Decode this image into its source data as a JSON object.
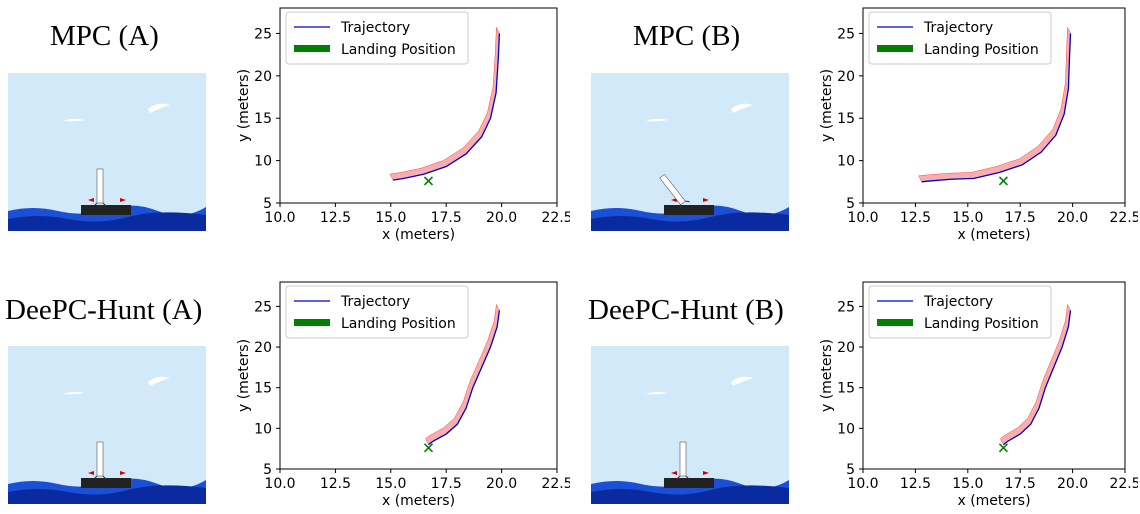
{
  "panels": [
    {
      "title": "MPC (A)"
    },
    {
      "title": "MPC (B)"
    },
    {
      "title": "DeePC-Hunt (A)"
    },
    {
      "title": "DeePC-Hunt (B)"
    }
  ],
  "colors": {
    "sky": "#d2e9fa",
    "trajectory": "#0000cc",
    "landing": "#008000",
    "rocket_shadow": "#ff0000",
    "platform": "#222222"
  },
  "chart_data": [
    {
      "type": "line",
      "panel": "MPC (A)",
      "xlabel": "x (meters)",
      "ylabel": "y (meters)",
      "xlim": [
        10.0,
        22.5
      ],
      "ylim": [
        5,
        28
      ],
      "xticks": [
        "10.0",
        "12.5",
        "15.0",
        "17.5",
        "20.0",
        "22.5"
      ],
      "yticks": [
        "5",
        "10",
        "15",
        "20",
        "25"
      ],
      "legend": {
        "position": "top-left",
        "entries": [
          "Trajectory",
          "Landing Position"
        ]
      },
      "landing_position": {
        "x": 16.7,
        "y": 7.6
      },
      "series": [
        {
          "name": "Trajectory",
          "x": [
            19.9,
            19.85,
            19.75,
            19.5,
            19.1,
            18.4,
            17.5,
            16.5,
            15.6,
            15.1
          ],
          "y": [
            25.0,
            22.0,
            18.0,
            15.0,
            12.8,
            10.8,
            9.3,
            8.4,
            7.9,
            7.7
          ]
        }
      ]
    },
    {
      "type": "line",
      "panel": "MPC (B)",
      "xlabel": "x (meters)",
      "ylabel": "y (meters)",
      "xlim": [
        10.0,
        22.5
      ],
      "ylim": [
        5,
        28
      ],
      "xticks": [
        "10.0",
        "12.5",
        "15.0",
        "17.5",
        "20.0",
        "22.5"
      ],
      "yticks": [
        "5",
        "10",
        "15",
        "20",
        "25"
      ],
      "legend": {
        "position": "top-left",
        "entries": [
          "Trajectory",
          "Landing Position"
        ]
      },
      "landing_position": {
        "x": 16.7,
        "y": 7.6
      },
      "series": [
        {
          "name": "Trajectory",
          "x": [
            19.9,
            19.85,
            19.8,
            19.6,
            19.2,
            18.5,
            17.6,
            16.5,
            15.3,
            14.2,
            13.2,
            12.8
          ],
          "y": [
            25.0,
            22.0,
            18.5,
            15.5,
            13.0,
            11.0,
            9.5,
            8.6,
            7.9,
            7.8,
            7.6,
            7.5
          ]
        }
      ]
    },
    {
      "type": "line",
      "panel": "DeePC-Hunt (A)",
      "xlabel": "x (meters)",
      "ylabel": "y (meters)",
      "xlim": [
        10.0,
        22.5
      ],
      "ylim": [
        5,
        28
      ],
      "xticks": [
        "10.0",
        "12.5",
        "15.0",
        "17.5",
        "20.0",
        "22.5"
      ],
      "yticks": [
        "5",
        "10",
        "15",
        "20",
        "25"
      ],
      "legend": {
        "position": "top-left",
        "entries": [
          "Trajectory",
          "Landing Position"
        ]
      },
      "landing_position": {
        "x": 16.7,
        "y": 7.6
      },
      "series": [
        {
          "name": "Trajectory",
          "x": [
            19.9,
            19.8,
            19.5,
            19.1,
            18.7,
            18.4,
            18.0,
            17.5,
            16.9,
            16.7
          ],
          "y": [
            24.5,
            22.5,
            20.0,
            17.5,
            15.0,
            12.5,
            10.5,
            9.3,
            8.4,
            8.0
          ]
        }
      ]
    },
    {
      "type": "line",
      "panel": "DeePC-Hunt (B)",
      "xlabel": "x (meters)",
      "ylabel": "y (meters)",
      "xlim": [
        10.0,
        22.5
      ],
      "ylim": [
        5,
        28
      ],
      "xticks": [
        "10.0",
        "12.5",
        "15.0",
        "17.5",
        "20.0",
        "22.5"
      ],
      "yticks": [
        "5",
        "10",
        "15",
        "20",
        "25"
      ],
      "legend": {
        "position": "top-left",
        "entries": [
          "Trajectory",
          "Landing Position"
        ]
      },
      "landing_position": {
        "x": 16.7,
        "y": 7.6
      },
      "series": [
        {
          "name": "Trajectory",
          "x": [
            19.9,
            19.8,
            19.5,
            19.1,
            18.7,
            18.4,
            18.0,
            17.5,
            16.9,
            16.7
          ],
          "y": [
            24.5,
            22.5,
            20.0,
            17.5,
            15.0,
            12.5,
            10.5,
            9.3,
            8.4,
            8.0
          ]
        }
      ]
    }
  ]
}
